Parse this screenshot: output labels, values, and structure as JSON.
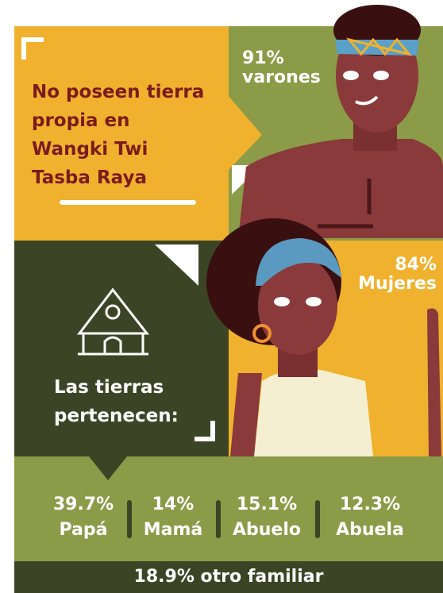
{
  "title": {
    "lines": [
      "No poseen tierra",
      "propia en",
      "Wangki Twi",
      "Tasba Raya"
    ]
  },
  "men": {
    "percent": "91%",
    "label": "varones"
  },
  "women": {
    "percent": "84%",
    "label": "Mujeres"
  },
  "owners_heading": {
    "lines": [
      "Las tierras",
      "pertenecen:"
    ]
  },
  "owners": [
    {
      "percent": "39.7%",
      "label": "Papá"
    },
    {
      "percent": "14%",
      "label": "Mamá"
    },
    {
      "percent": "15.1%",
      "label": "Abuelo"
    },
    {
      "percent": "12.3%",
      "label": "Abuela"
    }
  ],
  "footer": "18.9% otro familiar"
}
